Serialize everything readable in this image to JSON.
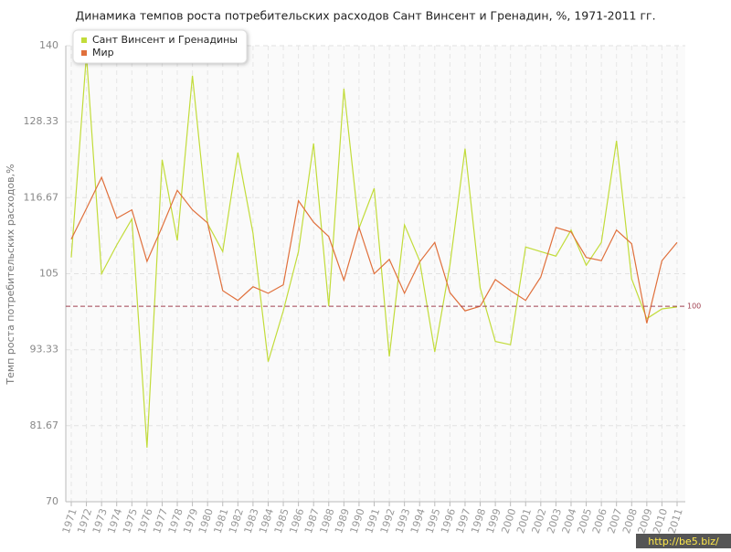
{
  "chart_data": {
    "type": "line",
    "title": "Динамика темпов роста потребительских расходов Сант Винсент и Гренадин, %, 1971-2011 гг.",
    "y_label": "Темп роста потребительских расходов,%",
    "categories": [
      "1971",
      "1972",
      "1973",
      "1974",
      "1975",
      "1976",
      "1977",
      "1978",
      "1979",
      "1980",
      "1981",
      "1982",
      "1983",
      "1984",
      "1985",
      "1986",
      "1987",
      "1988",
      "1989",
      "1990",
      "1991",
      "1992",
      "1993",
      "1994",
      "1995",
      "1996",
      "1997",
      "1998",
      "1999",
      "2000",
      "2001",
      "2002",
      "2003",
      "2004",
      "2005",
      "2006",
      "2007",
      "2008",
      "2009",
      "2010",
      "2011"
    ],
    "series": [
      {
        "name": "Сант Винсент и Гренадины",
        "color": "#c2dc3a",
        "values": [
          107.5,
          138.6,
          105,
          109.4,
          113.4,
          78.3,
          122.5,
          110.1,
          135.4,
          112.7,
          108.4,
          123.6,
          111.2,
          91.5,
          99.3,
          108.4,
          125,
          100,
          133.4,
          112,
          118.1,
          92.3,
          112.5,
          107,
          93,
          106.3,
          124.2,
          102.8,
          94.6,
          94.1,
          109.1,
          108.4,
          107.7,
          111.7,
          106.3,
          109.8,
          125.4,
          104.2,
          98.1,
          99.6,
          99.9
        ]
      },
      {
        "name": "Мир",
        "color": "#e0703c",
        "values": [
          110.3,
          115,
          119.8,
          113.5,
          114.8,
          106.9,
          112.2,
          117.8,
          114.8,
          112.8,
          102.4,
          100.9,
          103,
          102,
          103.3,
          116.2,
          112.9,
          110.7,
          104,
          112.1,
          105,
          107.2,
          102,
          106.8,
          109.8,
          102.1,
          99.3,
          100,
          104.1,
          102.4,
          100.9,
          104.5,
          112.1,
          111.4,
          107.5,
          107,
          111.7,
          109.6,
          97.4,
          107,
          109.8
        ]
      }
    ],
    "ylim": [
      70,
      140
    ],
    "yticks": [
      70,
      81.67,
      93.33,
      105,
      116.67,
      128.33,
      140
    ],
    "reference_line": 100,
    "grid": true,
    "legend": "top-left",
    "watermark": "http://be5.biz/"
  }
}
